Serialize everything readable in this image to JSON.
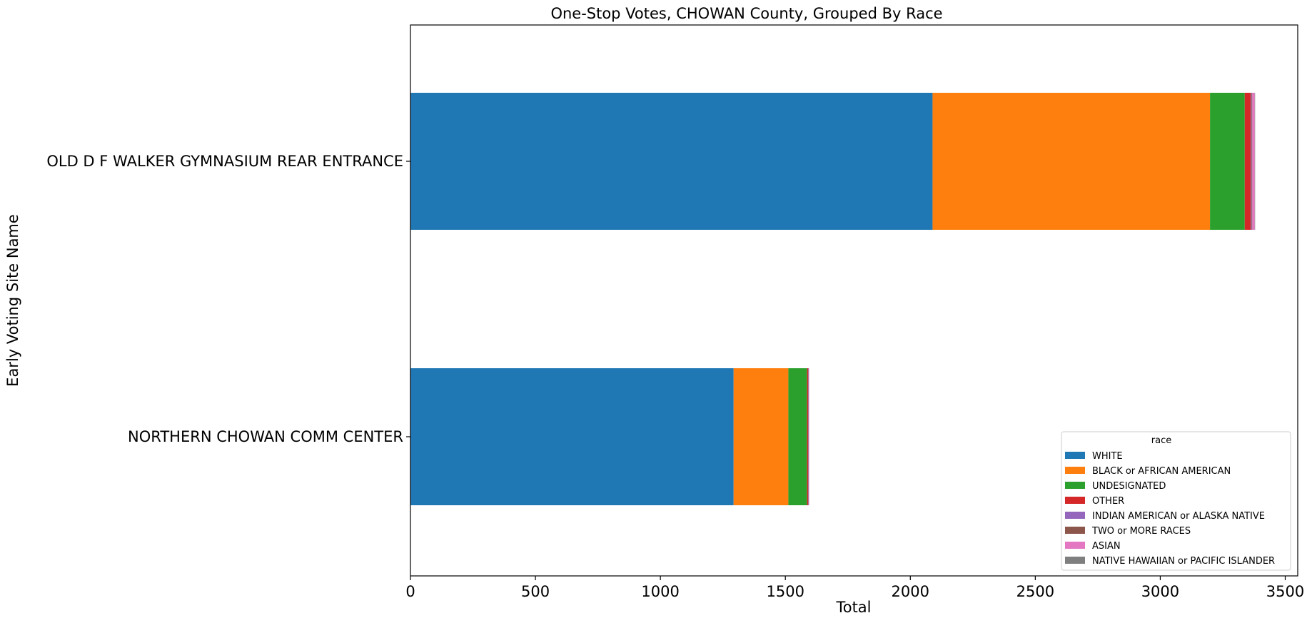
{
  "chart_data": {
    "type": "bar",
    "orientation": "horizontal",
    "stacked": true,
    "title": "One-Stop Votes, CHOWAN County, Grouped By Race",
    "xlabel": "Total",
    "ylabel": "Early Voting Site Name",
    "xlim": [
      0,
      3550
    ],
    "xticks": [
      0,
      500,
      1000,
      1500,
      2000,
      2500,
      3000,
      3500
    ],
    "categories": [
      "NORTHERN CHOWAN COMM CENTER",
      "OLD D F WALKER GYMNASIUM REAR ENTRANCE"
    ],
    "grid": false,
    "legend_title": "race",
    "legend_position": "lower right",
    "series": [
      {
        "name": "WHITE",
        "color": "#1f77b4",
        "values": [
          1293,
          2089
        ]
      },
      {
        "name": "BLACK or AFRICAN AMERICAN",
        "color": "#ff7f0e",
        "values": [
          219,
          1110
        ]
      },
      {
        "name": "UNDESIGNATED",
        "color": "#2ca02c",
        "values": [
          75,
          139
        ]
      },
      {
        "name": "OTHER",
        "color": "#d62728",
        "values": [
          4,
          24
        ]
      },
      {
        "name": "INDIAN AMERICAN or ALASKA NATIVE",
        "color": "#9467bd",
        "values": [
          1,
          3
        ]
      },
      {
        "name": "TWO or MORE RACES",
        "color": "#8c564b",
        "values": [
          1,
          3
        ]
      },
      {
        "name": "ASIAN",
        "color": "#e377c2",
        "values": [
          2,
          10
        ]
      },
      {
        "name": "NATIVE HAWAIIAN or PACIFIC ISLANDER",
        "color": "#7f7f7f",
        "values": [
          0,
          1
        ]
      }
    ]
  }
}
